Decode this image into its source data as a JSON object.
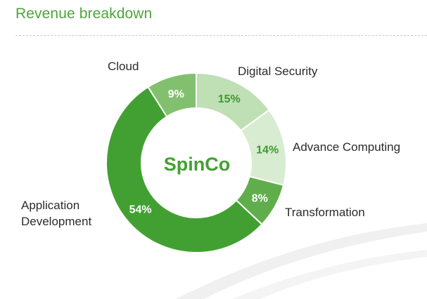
{
  "title": "Revenue breakdown",
  "colors": {
    "title": "#4ea43c",
    "center_text": "#44a033",
    "pct_dark_on_light": "#3d9a2f",
    "pct_light_on_dark": "#ffffff"
  },
  "chart_data": {
    "type": "pie",
    "donut": true,
    "title": "Revenue breakdown",
    "center_label": "SpinCo",
    "unit": "%",
    "slices": [
      {
        "name": "Digital Security",
        "value": 15,
        "label": "15%",
        "color": "#bfe0b5"
      },
      {
        "name": "Advance Computing",
        "value": 14,
        "label": "14%",
        "color": "#d7ecd0"
      },
      {
        "name": "Transformation",
        "value": 8,
        "label": "8%",
        "color": "#5fae4b"
      },
      {
        "name": "Application Development",
        "value": 54,
        "label": "54%",
        "color": "#42a032"
      },
      {
        "name": "Cloud",
        "value": 9,
        "label": "9%",
        "color": "#82c06f"
      }
    ],
    "category_labels": [
      {
        "lines": [
          "Digital Security"
        ]
      },
      {
        "lines": [
          "Advance Computing"
        ]
      },
      {
        "lines": [
          "Transformation"
        ]
      },
      {
        "lines": [
          "Application",
          "Development"
        ]
      },
      {
        "lines": [
          "Cloud"
        ]
      }
    ],
    "legend": "none"
  }
}
